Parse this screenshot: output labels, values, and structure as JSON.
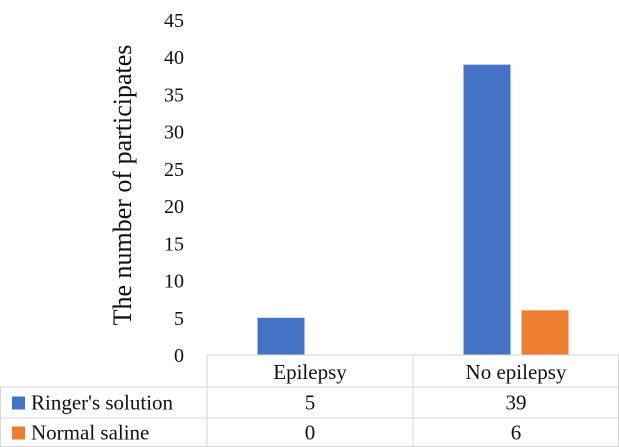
{
  "chart_data": {
    "type": "bar",
    "categories": [
      "Epilepsy",
      "No epilepsy"
    ],
    "series": [
      {
        "name": "Ringer's solution",
        "values": [
          5,
          39
        ],
        "color": "#4472C4"
      },
      {
        "name": "Normal saline",
        "values": [
          0,
          6
        ],
        "color": "#ED7D31"
      }
    ],
    "ylabel": "The number of participates",
    "ylim": [
      0,
      45
    ],
    "yticks": [
      0,
      5,
      10,
      15,
      20,
      25,
      30,
      35,
      40,
      45
    ],
    "legend": "data-table",
    "grid": false
  }
}
